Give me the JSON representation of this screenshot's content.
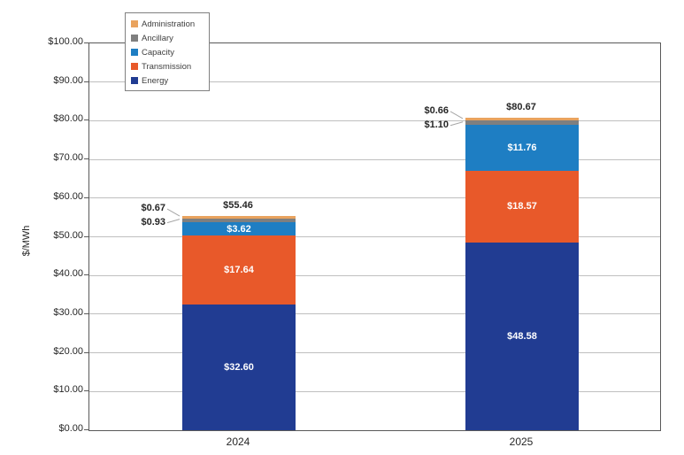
{
  "chart_data": {
    "type": "bar",
    "stacked": true,
    "title": "",
    "ylabel": "$/MWh",
    "ylim": [
      0,
      100
    ],
    "ytick_step": 10,
    "ytick_labels": [
      "$0.00",
      "$10.00",
      "$20.00",
      "$30.00",
      "$40.00",
      "$50.00",
      "$60.00",
      "$70.00",
      "$80.00",
      "$90.00",
      "$100.00"
    ],
    "categories": [
      "2024",
      "2025"
    ],
    "series": [
      {
        "name": "Energy",
        "color": "#213c92",
        "values": [
          32.6,
          48.58
        ],
        "labels": [
          "$32.60",
          "$48.58"
        ]
      },
      {
        "name": "Transmission",
        "color": "#e8592a",
        "values": [
          17.64,
          18.57
        ],
        "labels": [
          "$17.64",
          "$18.57"
        ]
      },
      {
        "name": "Capacity",
        "color": "#1e7ec3",
        "values": [
          3.62,
          11.76
        ],
        "labels": [
          "$3.62",
          "$11.76"
        ]
      },
      {
        "name": "Ancillary",
        "color": "#7f7f7f",
        "values": [
          0.93,
          1.1
        ],
        "labels": [
          "$0.93",
          "$1.10"
        ],
        "callout": true
      },
      {
        "name": "Administration",
        "color": "#e9a35e",
        "values": [
          0.67,
          0.66
        ],
        "labels": [
          "$0.67",
          "$0.66"
        ],
        "callout": true
      }
    ],
    "totals": [
      55.46,
      80.67
    ],
    "total_labels": [
      "$55.46",
      "$80.67"
    ],
    "legend": {
      "position": "top-left",
      "order": [
        "Administration",
        "Ancillary",
        "Capacity",
        "Transmission",
        "Energy"
      ]
    },
    "grid": "horizontal",
    "colors": {
      "axis_border": "#595959",
      "gridline": "#bfbfbf",
      "leader_line": "#a6a6a6",
      "text": "#262626"
    }
  }
}
